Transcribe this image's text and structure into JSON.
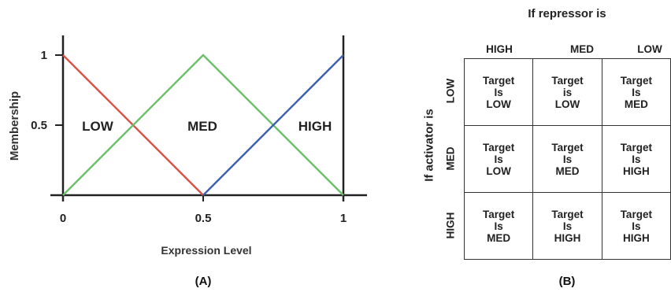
{
  "panel_a": {
    "caption": "(A)",
    "ylabel": "Membership",
    "xlabel": "Expression Level",
    "y_ticks": [
      "1",
      "0.5"
    ],
    "x_ticks": [
      "0",
      "0.5",
      "1"
    ],
    "region_labels": {
      "low": "LOW",
      "med": "MED",
      "high": "HIGH"
    },
    "chart_data": {
      "type": "line",
      "xlabel": "Expression Level",
      "ylabel": "Membership",
      "xlim": [
        0,
        1
      ],
      "ylim": [
        0,
        1
      ],
      "series": [
        {
          "name": "LOW",
          "color": "#d9534a",
          "x": [
            0,
            0.5
          ],
          "y": [
            1,
            0
          ]
        },
        {
          "name": "MED",
          "color": "#6cc06a",
          "x": [
            0,
            0.5,
            1
          ],
          "y": [
            0,
            1,
            0
          ]
        },
        {
          "name": "HIGH",
          "color": "#3f5fae",
          "x": [
            0.5,
            1
          ],
          "y": [
            0,
            1
          ]
        }
      ]
    }
  },
  "panel_b": {
    "caption": "(B)",
    "title": "If repressor is",
    "side_title": "If activator is",
    "columns": [
      "HIGH",
      "MED",
      "LOW"
    ],
    "rows": [
      "LOW",
      "MED",
      "HIGH"
    ],
    "cells": [
      [
        [
          "Target",
          "Is",
          "LOW"
        ],
        [
          "Target",
          "is",
          "LOW"
        ],
        [
          "Target",
          "Is",
          "MED"
        ]
      ],
      [
        [
          "Target",
          "Is",
          "LOW"
        ],
        [
          "Target",
          "Is",
          "MED"
        ],
        [
          "Target",
          "Is",
          "HIGH"
        ]
      ],
      [
        [
          "Target",
          "Is",
          "MED"
        ],
        [
          "Target",
          "Is",
          "HIGH"
        ],
        [
          "Target",
          "Is",
          "HIGH"
        ]
      ]
    ]
  }
}
